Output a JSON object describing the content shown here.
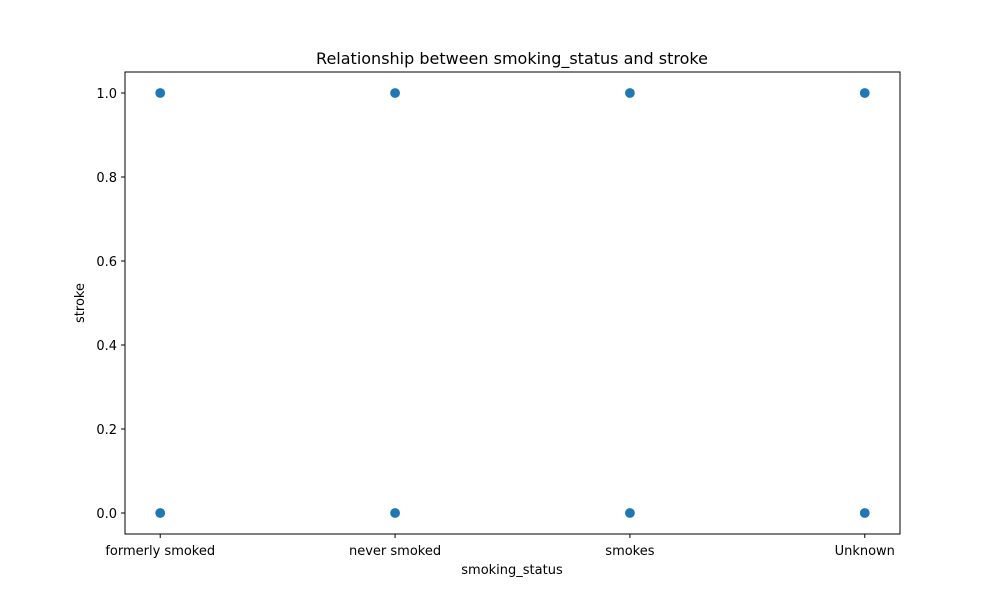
{
  "chart_data": {
    "type": "scatter",
    "title": "Relationship between smoking_status and stroke",
    "xlabel": "smoking_status",
    "ylabel": "stroke",
    "categories": [
      "formerly smoked",
      "never smoked",
      "smokes",
      "Unknown"
    ],
    "ylim": [
      -0.05,
      1.05
    ],
    "yticks": [
      0.0,
      0.2,
      0.4,
      0.6,
      0.8,
      1.0
    ],
    "ytick_labels": [
      "0.0",
      "0.2",
      "0.4",
      "0.6",
      "0.8",
      "1.0"
    ],
    "grid": false,
    "marker_color": "#1f77b4",
    "points": [
      {
        "x": "formerly smoked",
        "y": 1.0
      },
      {
        "x": "formerly smoked",
        "y": 0.0
      },
      {
        "x": "never smoked",
        "y": 1.0
      },
      {
        "x": "never smoked",
        "y": 0.0
      },
      {
        "x": "smokes",
        "y": 1.0
      },
      {
        "x": "smokes",
        "y": 0.0
      },
      {
        "x": "Unknown",
        "y": 1.0
      },
      {
        "x": "Unknown",
        "y": 0.0
      }
    ]
  }
}
